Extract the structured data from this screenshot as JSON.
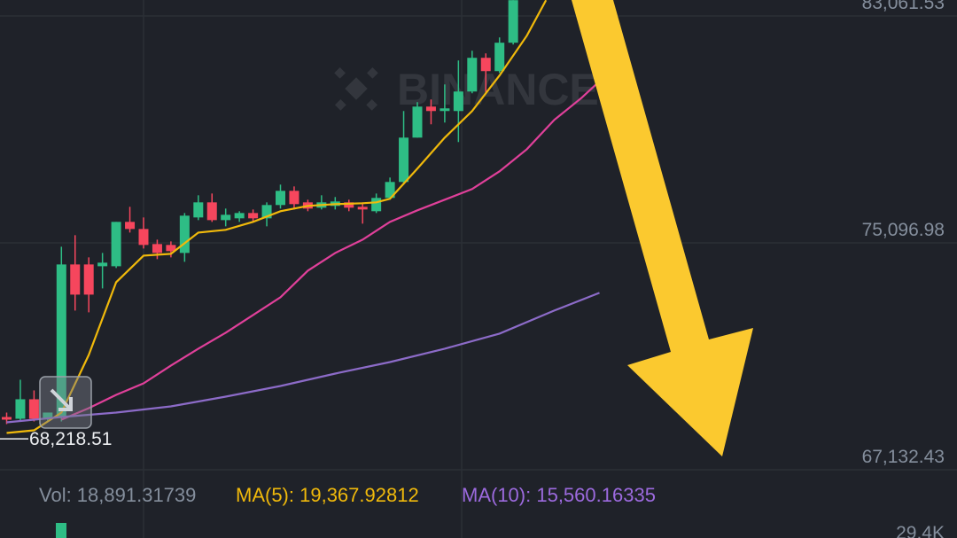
{
  "chart_data": {
    "type": "candlestick",
    "watermark": "BINANCE",
    "up_color": "#2ebd85",
    "down_color": "#f6465d",
    "open": [
      68984,
      68922,
      69607,
      68922,
      68984,
      74339,
      74339,
      74276,
      74276,
      75833,
      75584,
      75055,
      75024,
      74743,
      75989,
      76518,
      75895,
      75958,
      76144,
      75958,
      76425,
      76923,
      76518,
      76331,
      76393,
      76518,
      76362,
      76207,
      76674,
      77234,
      78791,
      79880,
      79724,
      79724,
      80409,
      81592,
      81125,
      82122
    ],
    "high": [
      69140,
      70292,
      69918,
      69140,
      74961,
      75366,
      74588,
      74743,
      75833,
      76362,
      75989,
      75210,
      75148,
      76144,
      76767,
      76829,
      76300,
      76207,
      76269,
      76518,
      77141,
      77078,
      76611,
      76767,
      76705,
      76611,
      76518,
      76829,
      77390,
      79724,
      80036,
      80129,
      80658,
      81499,
      81841,
      81748,
      82308,
      83616
    ],
    "low": [
      68735,
      68828,
      68828,
      68828,
      68828,
      72720,
      72658,
      73498,
      74214,
      75459,
      74899,
      74525,
      74588,
      74432,
      75895,
      75833,
      75677,
      75833,
      75833,
      75677,
      76300,
      76269,
      76207,
      76269,
      76269,
      76207,
      75771,
      76144,
      76611,
      77141,
      78791,
      79258,
      79320,
      78635,
      80347,
      80347,
      81063,
      82059
    ],
    "close": [
      68891,
      69607,
      68922,
      69140,
      74339,
      73280,
      73280,
      74401,
      75833,
      75584,
      75024,
      74743,
      74806,
      76051,
      76518,
      75895,
      76082,
      76144,
      75958,
      76425,
      76923,
      76456,
      76300,
      76518,
      76549,
      76331,
      76269,
      76674,
      77234,
      78791,
      79880,
      79724,
      79818,
      80409,
      81592,
      81125,
      82122,
      83616
    ],
    "lines": [
      {
        "color": "#f0b90b",
        "x": [
          0,
          2,
          4,
          6,
          8,
          10,
          12,
          14,
          16,
          18,
          20,
          22,
          24,
          26,
          27,
          28,
          30,
          32,
          34,
          36,
          38,
          39.4
        ],
        "values": [
          68424,
          68517,
          69140,
          71163,
          73716,
          74650,
          74712,
          75459,
          75553,
          75833,
          76207,
          76393,
          76456,
          76487,
          76518,
          76642,
          77701,
          78791,
          79724,
          80970,
          82371,
          83616
        ]
      },
      {
        "color": "#e0409a",
        "x": [
          4,
          6,
          8,
          10,
          12,
          14,
          16,
          18,
          20,
          22,
          24,
          26,
          28,
          30,
          32,
          34,
          36,
          38,
          40,
          42,
          43.2
        ],
        "values": [
          68891,
          69295,
          69762,
          70167,
          70790,
          71381,
          71941,
          72564,
          73187,
          74121,
          74743,
          75210,
          75833,
          76238,
          76611,
          76985,
          77608,
          78386,
          79413,
          80191,
          80721
        ]
      },
      {
        "color": "#8c6bc8",
        "x": [
          0,
          4,
          8,
          12,
          16,
          20,
          24,
          28,
          32,
          36,
          40,
          43.3
        ],
        "values": [
          68797,
          68984,
          69140,
          69358,
          69700,
          70074,
          70509,
          70914,
          71381,
          71910,
          72720,
          73342
        ]
      }
    ],
    "ylim": [
      67132.43,
      83621.5
    ],
    "yticks": [
      {
        "value": 83061.53,
        "label": "83,061.53"
      },
      {
        "value": 75096.98,
        "label": "75,096.98"
      },
      {
        "value": 67132.43,
        "label": "67,132.43"
      }
    ],
    "grid": true,
    "price_line": {
      "value": 68218.51,
      "label": "68,218.51"
    },
    "volume_legend": [
      {
        "text": "Vol: 18,891.31739",
        "color": "#848e9c"
      },
      {
        "text": "MA(5): 19,367.92812",
        "color": "#f0b90b"
      },
      {
        "text": "MA(10): 15,560.16335",
        "color": "#9c6ade"
      }
    ],
    "volume_axis_label": "29.4K"
  }
}
